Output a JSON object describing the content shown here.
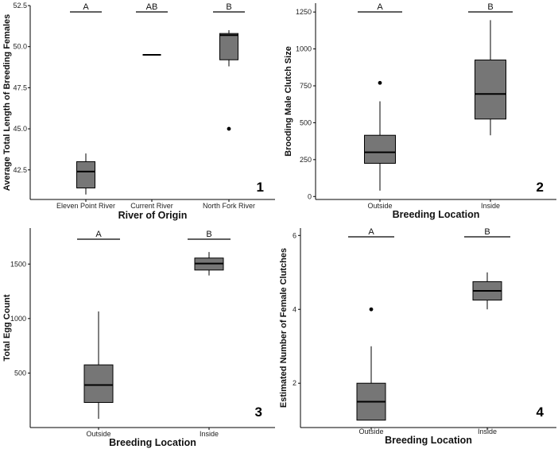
{
  "chart_data": [
    {
      "type": "box",
      "panel_number": "1",
      "xlabel": "River of Origin",
      "ylabel": "Average Total Length of Breeding Females",
      "ylim": [
        40.7,
        52.5
      ],
      "yticks": [
        42.5,
        45.0,
        47.5,
        50.0,
        52.5
      ],
      "ytick_labels": [
        "42.5",
        "45.0",
        "47.5",
        "50.0",
        "52.5"
      ],
      "categories": [
        "Eleven Point River",
        "Current River",
        "North Fork River"
      ],
      "boxes": [
        {
          "min": 41.0,
          "q1": 41.4,
          "median": 42.4,
          "q3": 43.0,
          "max": 43.5,
          "outliers": []
        },
        {
          "min": 49.5,
          "q1": 49.5,
          "median": 49.5,
          "q3": 49.5,
          "max": 49.5,
          "outliers": []
        },
        {
          "min": 48.8,
          "q1": 49.2,
          "median": 50.7,
          "q3": 50.8,
          "max": 51.0,
          "outliers": [
            45.0
          ]
        }
      ],
      "significance": [
        "A",
        "AB",
        "B"
      ],
      "colors": {
        "box_fill": "#767676"
      }
    },
    {
      "type": "box",
      "panel_number": "2",
      "xlabel": "Breeding Location",
      "ylabel": "Brooding Male Clutch Size",
      "ylim": [
        -20,
        1310
      ],
      "yticks": [
        0,
        250,
        500,
        750,
        1000,
        1250
      ],
      "ytick_labels": [
        "0",
        "250",
        "500",
        "750",
        "1000",
        "1250"
      ],
      "categories": [
        "Outside",
        "Inside"
      ],
      "boxes": [
        {
          "min": 40,
          "q1": 225,
          "median": 300,
          "q3": 415,
          "max": 645,
          "outliers": [
            770
          ]
        },
        {
          "min": 415,
          "q1": 525,
          "median": 695,
          "q3": 925,
          "max": 1195,
          "outliers": []
        }
      ],
      "significance": [
        "A",
        "B"
      ],
      "colors": {
        "box_fill": "#767676"
      }
    },
    {
      "type": "box",
      "panel_number": "3",
      "xlabel": "Breeding Location",
      "ylabel": "Total Egg Count",
      "ylim": [
        0,
        1830
      ],
      "yticks": [
        500,
        1000,
        1500
      ],
      "ytick_labels": [
        "500",
        "1000",
        "1500"
      ],
      "categories": [
        "Outside",
        "Inside"
      ],
      "boxes": [
        {
          "min": 80,
          "q1": 230,
          "median": 390,
          "q3": 575,
          "max": 1065,
          "outliers": []
        },
        {
          "min": 1395,
          "q1": 1445,
          "median": 1505,
          "q3": 1555,
          "max": 1610,
          "outliers": []
        }
      ],
      "significance": [
        "A",
        "B"
      ],
      "colors": {
        "box_fill": "#767676"
      }
    },
    {
      "type": "box",
      "panel_number": "4",
      "xlabel": "Breeding Location",
      "ylabel": "Estimated Number of Female Clutches",
      "ylim": [
        0.8,
        6.2
      ],
      "yticks": [
        2,
        4,
        6
      ],
      "ytick_labels": [
        "2",
        "4",
        "6"
      ],
      "categories": [
        "Outside",
        "Inside"
      ],
      "boxes": [
        {
          "min": 1.0,
          "q1": 1.0,
          "median": 1.5,
          "q3": 2.0,
          "max": 3.0,
          "outliers": [
            4.0
          ]
        },
        {
          "min": 4.0,
          "q1": 4.25,
          "median": 4.5,
          "q3": 4.75,
          "max": 5.0,
          "outliers": []
        }
      ],
      "significance": [
        "A",
        "B"
      ],
      "colors": {
        "box_fill": "#767676"
      }
    }
  ]
}
